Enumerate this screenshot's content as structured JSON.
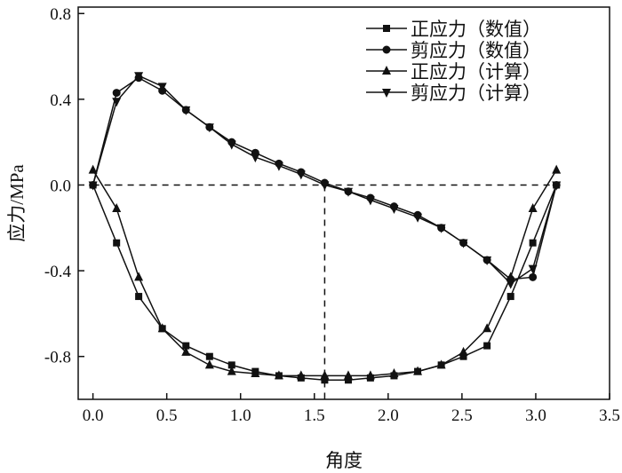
{
  "chart_data": {
    "type": "line",
    "title": "",
    "xlabel": "角度",
    "ylabel": "应力/MPa",
    "xlim": [
      -0.1,
      3.5
    ],
    "ylim": [
      -1.0,
      0.83
    ],
    "xticks": [
      0.0,
      0.5,
      1.0,
      1.5,
      2.0,
      2.5,
      3.0,
      3.5
    ],
    "xtick_labels": [
      "0.0",
      "0.5",
      "1.0",
      "1.5",
      "2.0",
      "2.5",
      "3.0",
      "3.5"
    ],
    "yticks": [
      0.8,
      0.4,
      0.0,
      -0.4,
      -0.8
    ],
    "ytick_labels": [
      "0.8",
      "0.4",
      "0.0",
      "-0.4",
      "-0.8"
    ],
    "legend_position": "top-right",
    "reference_lines": {
      "y": 0.0,
      "x": 1.57
    },
    "x": [
      0,
      0.16,
      0.31,
      0.47,
      0.63,
      0.79,
      0.94,
      1.1,
      1.26,
      1.41,
      1.57,
      1.73,
      1.88,
      2.04,
      2.2,
      2.36,
      2.51,
      2.67,
      2.83,
      2.98,
      3.14
    ],
    "series": [
      {
        "name": "正应力（数值）",
        "marker": "square",
        "values": [
          0,
          -0.27,
          -0.52,
          -0.67,
          -0.75,
          -0.8,
          -0.84,
          -0.87,
          -0.89,
          -0.9,
          -0.91,
          -0.91,
          -0.9,
          -0.89,
          -0.87,
          -0.84,
          -0.8,
          -0.75,
          -0.52,
          -0.27,
          0
        ]
      },
      {
        "name": "剪应力（数值）",
        "marker": "circle",
        "values": [
          0,
          0.43,
          0.5,
          0.44,
          0.35,
          0.27,
          0.2,
          0.15,
          0.1,
          0.06,
          0.01,
          -0.03,
          -0.06,
          -0.1,
          -0.14,
          -0.2,
          -0.27,
          -0.35,
          -0.44,
          -0.43,
          0
        ]
      },
      {
        "name": "正应力（计算）",
        "marker": "triangle-up",
        "values": [
          0.07,
          -0.11,
          -0.43,
          -0.67,
          -0.78,
          -0.84,
          -0.87,
          -0.88,
          -0.89,
          -0.89,
          -0.89,
          -0.89,
          -0.89,
          -0.88,
          -0.87,
          -0.84,
          -0.78,
          -0.67,
          -0.43,
          -0.11,
          0.07
        ]
      },
      {
        "name": "剪应力（计算）",
        "marker": "triangle-down",
        "values": [
          0,
          0.39,
          0.51,
          0.46,
          0.35,
          0.27,
          0.19,
          0.13,
          0.09,
          0.05,
          0.0,
          -0.03,
          -0.07,
          -0.11,
          -0.15,
          -0.2,
          -0.27,
          -0.35,
          -0.46,
          -0.39,
          0
        ]
      }
    ]
  }
}
